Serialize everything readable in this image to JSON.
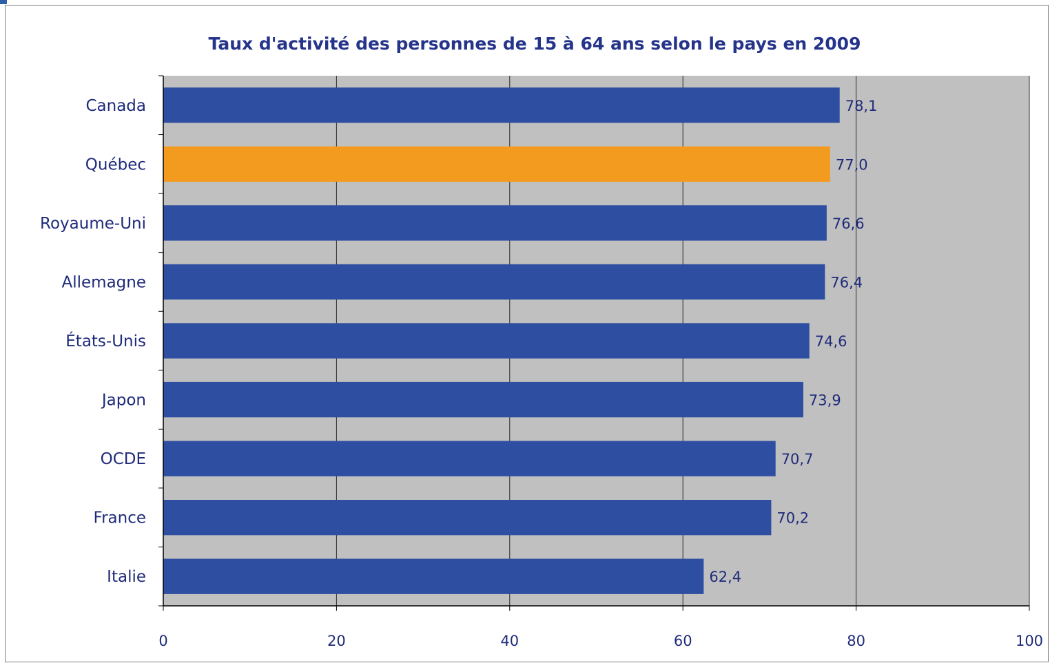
{
  "chart_data": {
    "type": "bar",
    "orientation": "horizontal",
    "title": "Taux d'activité des personnes de 15 à 64 ans selon le pays en 2009",
    "xlabel": "",
    "ylabel": "",
    "categories": [
      "Canada",
      "Québec",
      "Royaume-Uni",
      "Allemagne",
      "États-Unis",
      "Japon",
      "OCDE",
      "France",
      "Italie"
    ],
    "values": [
      78.1,
      77.0,
      76.6,
      76.4,
      74.6,
      73.9,
      70.7,
      70.2,
      62.4
    ],
    "value_labels": [
      "78,1",
      "77,0",
      "76,6",
      "76,4",
      "74,6",
      "73,9",
      "70,7",
      "70,2",
      "62,4"
    ],
    "highlight_category": "Québec",
    "xlim": [
      0,
      100
    ],
    "xticks": [
      0,
      20,
      40,
      60,
      80,
      100
    ],
    "xtick_labels": [
      "0",
      "20",
      "40",
      "60",
      "80",
      "100"
    ],
    "grid": true,
    "legend": "none",
    "colors": {
      "bar": "#2e4ea1",
      "highlight": "#f39b1f",
      "plot_background": "#c0c0c0",
      "gridline": "#2b2b2b",
      "text": "#1f2b7a",
      "title": "#25348a"
    }
  }
}
